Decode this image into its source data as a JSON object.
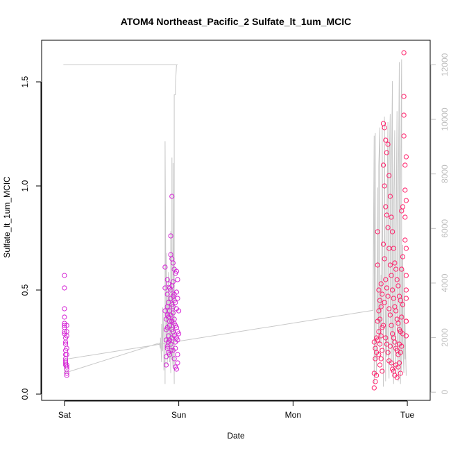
{
  "chart_data": {
    "type": "scatter",
    "title": "ATOM4 Northeast_Pacific_2 Sulfate_lt_1um_MCIC",
    "xlabel": "Date",
    "ylabel": "Sulfate_lt_1um_MCIC",
    "x_ticks": [
      "Sat",
      "Sun",
      "Mon",
      "Tue"
    ],
    "x_range_days": [
      -0.2,
      3.2
    ],
    "ylim": [
      -0.03,
      1.7
    ],
    "y_ticks": [
      0.0,
      0.5,
      1.0,
      1.5
    ],
    "y2_ticks": [
      0,
      2000,
      4000,
      6000,
      8000,
      10000,
      12000
    ],
    "y2lim": [
      -300,
      12900
    ],
    "grid": false,
    "colors": {
      "points_early": "#d41fd4",
      "points_late": "#ff1a66",
      "altitude_line": "#c8c8c8",
      "right_axis": "#bdbdbd"
    },
    "series": [
      {
        "type": "scatter",
        "x_days": [
          0.0,
          0.0,
          0.0,
          0.0,
          0.0,
          0.0,
          0.0,
          0.0,
          0.0,
          0.01,
          0.01,
          0.01,
          0.01,
          0.01,
          0.01,
          0.01,
          0.01,
          0.01,
          0.02,
          0.02,
          0.02,
          0.02,
          0.02,
          0.02,
          0.02,
          0.02,
          0.02,
          0.02
        ],
        "y": [
          0.57,
          0.51,
          0.41,
          0.37,
          0.34,
          0.33,
          0.32,
          0.3,
          0.29,
          0.27,
          0.25,
          0.24,
          0.21,
          0.19,
          0.17,
          0.16,
          0.15,
          0.14,
          0.13,
          0.12,
          0.1,
          0.09,
          0.33,
          0.28,
          0.19,
          0.14,
          0.3,
          0.22
        ]
      },
      {
        "type": "scatter",
        "x_days": [
          0.88,
          0.88,
          0.88,
          0.89,
          0.89,
          0.89,
          0.89,
          0.9,
          0.9,
          0.9,
          0.9,
          0.9,
          0.91,
          0.91,
          0.91,
          0.91,
          0.91,
          0.92,
          0.92,
          0.92,
          0.92,
          0.92,
          0.93,
          0.93,
          0.93,
          0.93,
          0.93,
          0.94,
          0.94,
          0.94,
          0.94,
          0.94,
          0.94,
          0.95,
          0.95,
          0.95,
          0.95,
          0.95,
          0.96,
          0.96,
          0.96,
          0.96,
          0.96,
          0.97,
          0.97,
          0.97,
          0.97,
          0.97,
          0.98,
          0.98,
          0.98,
          0.98,
          0.98,
          0.99,
          0.99,
          0.99,
          0.99,
          0.99,
          1.0,
          1.0,
          0.89,
          0.9,
          0.92,
          0.93,
          0.95,
          0.96,
          0.97,
          0.98,
          0.93,
          0.95,
          0.91,
          0.94,
          0.96,
          0.99,
          0.9
        ],
        "y": [
          0.61,
          0.51,
          0.4,
          0.36,
          0.31,
          0.26,
          0.18,
          0.55,
          0.48,
          0.42,
          0.32,
          0.22,
          0.53,
          0.44,
          0.37,
          0.28,
          0.2,
          0.51,
          0.4,
          0.33,
          0.26,
          0.19,
          0.76,
          0.67,
          0.5,
          0.38,
          0.24,
          0.95,
          0.65,
          0.52,
          0.43,
          0.35,
          0.27,
          0.63,
          0.47,
          0.39,
          0.3,
          0.21,
          0.6,
          0.45,
          0.36,
          0.28,
          0.17,
          0.58,
          0.44,
          0.33,
          0.25,
          0.13,
          0.59,
          0.49,
          0.41,
          0.27,
          0.12,
          0.55,
          0.46,
          0.3,
          0.19,
          0.15,
          0.4,
          0.29,
          0.14,
          0.23,
          0.35,
          0.46,
          0.54,
          0.34,
          0.22,
          0.32,
          0.21,
          0.42,
          0.25,
          0.31,
          0.48,
          0.26,
          0.38
        ]
      },
      {
        "type": "scatter",
        "x_days": [
          2.71,
          2.71,
          2.71,
          2.72,
          2.72,
          2.72,
          2.73,
          2.73,
          2.73,
          2.74,
          2.74,
          2.74,
          2.74,
          2.75,
          2.75,
          2.75,
          2.75,
          2.76,
          2.76,
          2.76,
          2.76,
          2.77,
          2.77,
          2.77,
          2.77,
          2.78,
          2.78,
          2.78,
          2.78,
          2.79,
          2.79,
          2.79,
          2.79,
          2.8,
          2.8,
          2.8,
          2.8,
          2.81,
          2.81,
          2.81,
          2.81,
          2.82,
          2.82,
          2.82,
          2.82,
          2.83,
          2.83,
          2.83,
          2.83,
          2.84,
          2.84,
          2.84,
          2.84,
          2.85,
          2.85,
          2.85,
          2.85,
          2.86,
          2.86,
          2.86,
          2.86,
          2.87,
          2.87,
          2.87,
          2.87,
          2.88,
          2.88,
          2.88,
          2.88,
          2.89,
          2.89,
          2.89,
          2.89,
          2.9,
          2.9,
          2.9,
          2.9,
          2.91,
          2.91,
          2.91,
          2.91,
          2.92,
          2.92,
          2.92,
          2.92,
          2.93,
          2.93,
          2.93,
          2.93,
          2.94,
          2.94,
          2.94,
          2.94,
          2.95,
          2.95,
          2.95,
          2.95,
          2.96,
          2.96,
          2.96,
          2.96,
          2.97,
          2.97,
          2.97,
          2.97,
          2.98,
          2.98,
          2.98,
          2.98,
          2.99,
          2.99,
          2.99,
          2.99,
          2.99,
          2.99,
          2.99,
          2.99,
          2.99
        ],
        "y": [
          0.25,
          0.1,
          0.03,
          0.22,
          0.17,
          0.06,
          0.27,
          0.2,
          0.09,
          0.78,
          0.62,
          0.35,
          0.26,
          0.5,
          0.4,
          0.3,
          0.19,
          0.45,
          0.36,
          0.24,
          0.14,
          0.53,
          0.42,
          0.28,
          0.17,
          0.48,
          0.32,
          0.21,
          0.11,
          1.3,
          1.1,
          0.72,
          0.33,
          1.28,
          1.0,
          0.65,
          0.44,
          1.22,
          0.9,
          0.55,
          0.27,
          1.16,
          0.86,
          0.51,
          0.24,
          1.2,
          0.8,
          0.47,
          0.2,
          1.05,
          0.7,
          0.41,
          0.16,
          0.95,
          0.62,
          0.38,
          0.23,
          0.85,
          0.57,
          0.33,
          0.15,
          0.78,
          0.5,
          0.29,
          0.12,
          0.7,
          0.46,
          0.27,
          0.11,
          0.63,
          0.42,
          0.25,
          0.09,
          0.6,
          0.4,
          0.22,
          0.14,
          0.55,
          0.36,
          0.21,
          0.08,
          0.52,
          0.34,
          0.19,
          0.13,
          0.47,
          0.31,
          0.24,
          0.15,
          0.45,
          0.3,
          0.2,
          0.1,
          0.88,
          0.6,
          0.37,
          0.23,
          0.9,
          0.66,
          0.43,
          0.29,
          1.64,
          1.43,
          1.34,
          1.24,
          1.1,
          0.98,
          0.85,
          0.74,
          0.57,
          0.46,
          0.35,
          0.28,
          1.14,
          0.93,
          0.7,
          0.5,
          0.35
        ]
      },
      {
        "type": "line",
        "axis": "right",
        "x_days": [
          -0.01,
          -0.005,
          0.0,
          0.0,
          0.99,
          0.99,
          0.98,
          0.97,
          0.97,
          0.97,
          0.96,
          0.96,
          0.96,
          0.95,
          0.95,
          0.95,
          0.94,
          0.94,
          0.94,
          0.94,
          0.93,
          0.93,
          0.93,
          0.92,
          0.92,
          0.92,
          0.91,
          0.91,
          0.9,
          0.9,
          0.89,
          0.89,
          0.88,
          0.88,
          0.88,
          0.87,
          0.87,
          0.86,
          0.86,
          0.85,
          0.85,
          0.84,
          0.84,
          0.83,
          0.0,
          0.0,
          2.7,
          2.7,
          2.71,
          2.71,
          2.72,
          2.72,
          2.73,
          2.73,
          2.74,
          2.74,
          2.75,
          2.75,
          2.76,
          2.76,
          2.77,
          2.77,
          2.78,
          2.78,
          2.79,
          2.79,
          2.8,
          2.8,
          2.81,
          2.81,
          2.82,
          2.82,
          2.83,
          2.83,
          2.84,
          2.84,
          2.85,
          2.85,
          2.86,
          2.86,
          2.87,
          2.87,
          2.88,
          2.88,
          2.89,
          2.89,
          2.9,
          2.9,
          2.91,
          2.91,
          2.92,
          2.92,
          2.93,
          2.93,
          2.94,
          2.94,
          2.95,
          2.95,
          2.96,
          2.96,
          2.97,
          2.97,
          2.98,
          2.98,
          2.99,
          2.99
        ],
        "y2": [
          12000,
          12000,
          12000,
          12000,
          12000,
          12000,
          12000,
          11200,
          11200,
          10900,
          10900,
          8300,
          300,
          8400,
          2700,
          900,
          1600,
          3300,
          8600,
          1200,
          5900,
          1800,
          700,
          3500,
          2200,
          1100,
          2000,
          4400,
          2600,
          1000,
          5100,
          1600,
          9200,
          300,
          1300,
          800,
          1900,
          3100,
          1500,
          2500,
          1100,
          2000,
          1600,
          1800,
          700,
          1200,
          3000,
          3200,
          9400,
          300,
          9500,
          1600,
          1000,
          600,
          7500,
          3600,
          2000,
          8300,
          9700,
          1200,
          4300,
          1800,
          7200,
          9800,
          200,
          1500,
          4700,
          10100,
          400,
          3000,
          1300,
          6100,
          9900,
          2100,
          500,
          8200,
          10200,
          3500,
          900,
          7800,
          11400,
          1800,
          300,
          6800,
          9600,
          2400,
          700,
          5600,
          10300,
          3000,
          400,
          6600,
          12100,
          1700,
          300,
          7100,
          12200,
          800,
          5400,
          1900,
          700,
          4500,
          1200,
          2500,
          600,
          800
        ]
      }
    ]
  }
}
